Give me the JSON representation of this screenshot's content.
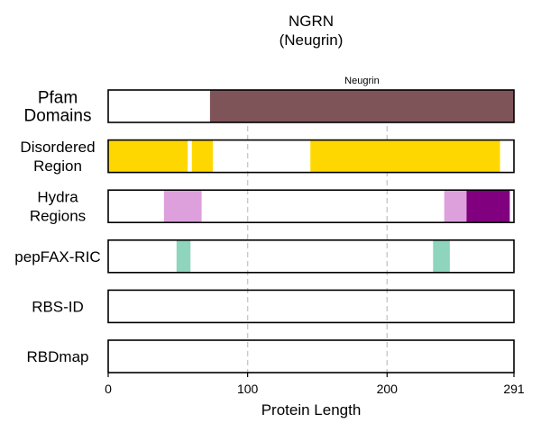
{
  "chart_data": {
    "type": "bar",
    "title": "NGRN",
    "subtitle": "(Neugrin)",
    "xlabel": "Protein Length",
    "xlim": [
      0,
      291
    ],
    "xticks": [
      0,
      100,
      200,
      291
    ],
    "xtick_labels": [
      "0",
      "100",
      "200",
      "291"
    ],
    "grid": "vertical dashed at 100 and 200",
    "tracks": [
      {
        "label": [
          "Pfam",
          "Domains"
        ],
        "segments": [
          {
            "start": 73,
            "end": 291,
            "color": "#7f5459",
            "label": "Neugrin"
          }
        ]
      },
      {
        "label": [
          "Disordered",
          "Region"
        ],
        "segments": [
          {
            "start": 0,
            "end": 57,
            "color": "#ffd700"
          },
          {
            "start": 60,
            "end": 75,
            "color": "#ffd700"
          },
          {
            "start": 145,
            "end": 281,
            "color": "#ffd700"
          }
        ]
      },
      {
        "label": [
          "Hydra",
          "Regions"
        ],
        "segments": [
          {
            "start": 40,
            "end": 67,
            "color": "#dda0dd"
          },
          {
            "start": 241,
            "end": 257,
            "color": "#dda0dd"
          },
          {
            "start": 257,
            "end": 288,
            "color": "#800080"
          }
        ]
      },
      {
        "label": [
          "pepFAX-RIC"
        ],
        "segments": [
          {
            "start": 49,
            "end": 59,
            "color": "#8fd4bc"
          },
          {
            "start": 233,
            "end": 245,
            "color": "#8fd4bc"
          }
        ]
      },
      {
        "label": [
          "RBS-ID"
        ],
        "segments": []
      },
      {
        "label": [
          "RBDmap"
        ],
        "segments": []
      }
    ]
  }
}
